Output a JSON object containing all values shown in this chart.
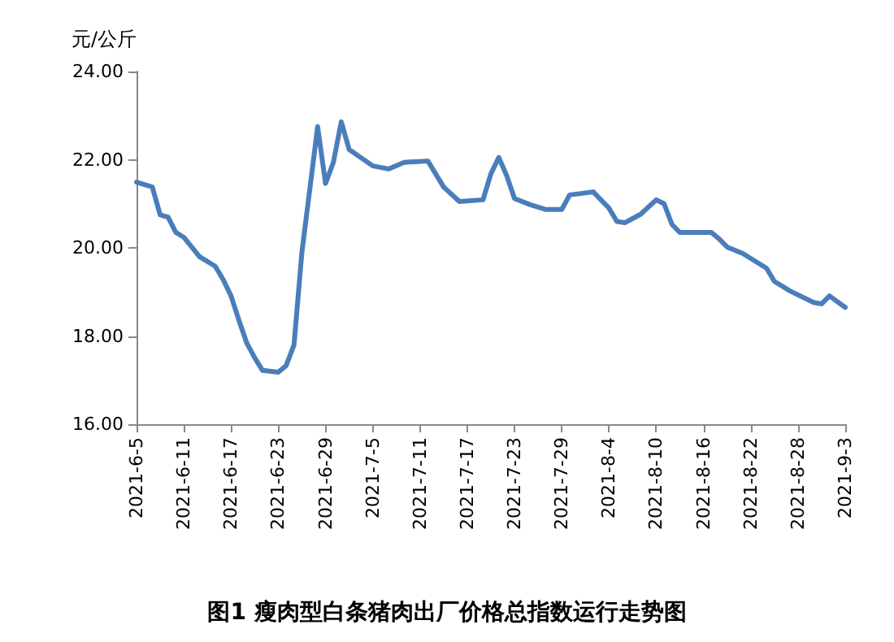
{
  "chart_data": {
    "type": "line",
    "title": "图1 瘦肉型白条猪肉出厂价格总指数运行走势图",
    "ylabel": "元/公斤",
    "x": [
      "2021-06-05",
      "2021-06-07",
      "2021-06-08",
      "2021-06-09",
      "2021-06-10",
      "2021-06-11",
      "2021-06-12",
      "2021-06-13",
      "2021-06-15",
      "2021-06-16",
      "2021-06-17",
      "2021-06-18",
      "2021-06-19",
      "2021-06-20",
      "2021-06-21",
      "2021-06-23",
      "2021-06-24",
      "2021-06-25",
      "2021-06-26",
      "2021-06-28",
      "2021-06-29",
      "2021-06-30",
      "2021-07-01",
      "2021-07-02",
      "2021-07-05",
      "2021-07-07",
      "2021-07-09",
      "2021-07-12",
      "2021-07-14",
      "2021-07-16",
      "2021-07-19",
      "2021-07-20",
      "2021-07-21",
      "2021-07-22",
      "2021-07-23",
      "2021-07-25",
      "2021-07-27",
      "2021-07-29",
      "2021-07-30",
      "2021-08-02",
      "2021-08-04",
      "2021-08-05",
      "2021-08-06",
      "2021-08-08",
      "2021-08-10",
      "2021-08-11",
      "2021-08-12",
      "2021-08-13",
      "2021-08-17",
      "2021-08-18",
      "2021-08-19",
      "2021-08-21",
      "2021-08-24",
      "2021-08-25",
      "2021-08-27",
      "2021-08-30",
      "2021-08-31",
      "2021-09-01",
      "2021-09-03"
    ],
    "series": [
      {
        "color": "#4a7ebb",
        "values": [
          21.49,
          21.38,
          20.75,
          20.7,
          20.35,
          20.24,
          20.02,
          19.8,
          19.58,
          19.28,
          18.91,
          18.36,
          17.84,
          17.51,
          17.22,
          17.18,
          17.33,
          17.8,
          19.9,
          22.75,
          21.46,
          21.94,
          22.86,
          22.23,
          21.86,
          21.79,
          21.94,
          21.97,
          21.38,
          21.05,
          21.09,
          21.68,
          22.05,
          21.64,
          21.12,
          20.98,
          20.87,
          20.87,
          21.2,
          21.27,
          20.9,
          20.6,
          20.57,
          20.76,
          21.09,
          21.0,
          20.53,
          20.35,
          20.35,
          20.2,
          20.02,
          19.87,
          19.54,
          19.24,
          19.02,
          18.76,
          18.73,
          18.91,
          18.65
        ]
      }
    ],
    "xlim": [
      "2021-06-05",
      "2021-09-03"
    ],
    "xticks": [
      {
        "value": "2021-06-05",
        "label": "2021-6-5"
      },
      {
        "value": "2021-06-11",
        "label": "2021-6-11"
      },
      {
        "value": "2021-06-17",
        "label": "2021-6-17"
      },
      {
        "value": "2021-06-23",
        "label": "2021-6-23"
      },
      {
        "value": "2021-06-29",
        "label": "2021-6-29"
      },
      {
        "value": "2021-07-05",
        "label": "2021-7-5"
      },
      {
        "value": "2021-07-11",
        "label": "2021-7-11"
      },
      {
        "value": "2021-07-17",
        "label": "2021-7-17"
      },
      {
        "value": "2021-07-23",
        "label": "2021-7-23"
      },
      {
        "value": "2021-07-29",
        "label": "2021-7-29"
      },
      {
        "value": "2021-08-04",
        "label": "2021-8-4"
      },
      {
        "value": "2021-08-10",
        "label": "2021-8-10"
      },
      {
        "value": "2021-08-16",
        "label": "2021-8-16"
      },
      {
        "value": "2021-08-22",
        "label": "2021-8-22"
      },
      {
        "value": "2021-08-28",
        "label": "2021-8-28"
      },
      {
        "value": "2021-09-03",
        "label": "2021-9-3"
      }
    ],
    "ylim": [
      16,
      24
    ],
    "yticks": [
      {
        "value": 16,
        "label": "16.00"
      },
      {
        "value": 18,
        "label": "18.00"
      },
      {
        "value": 20,
        "label": "20.00"
      },
      {
        "value": 22,
        "label": "22.00"
      },
      {
        "value": 24,
        "label": "24.00"
      }
    ],
    "grid": false,
    "marker": "none",
    "line_style": "solid"
  }
}
